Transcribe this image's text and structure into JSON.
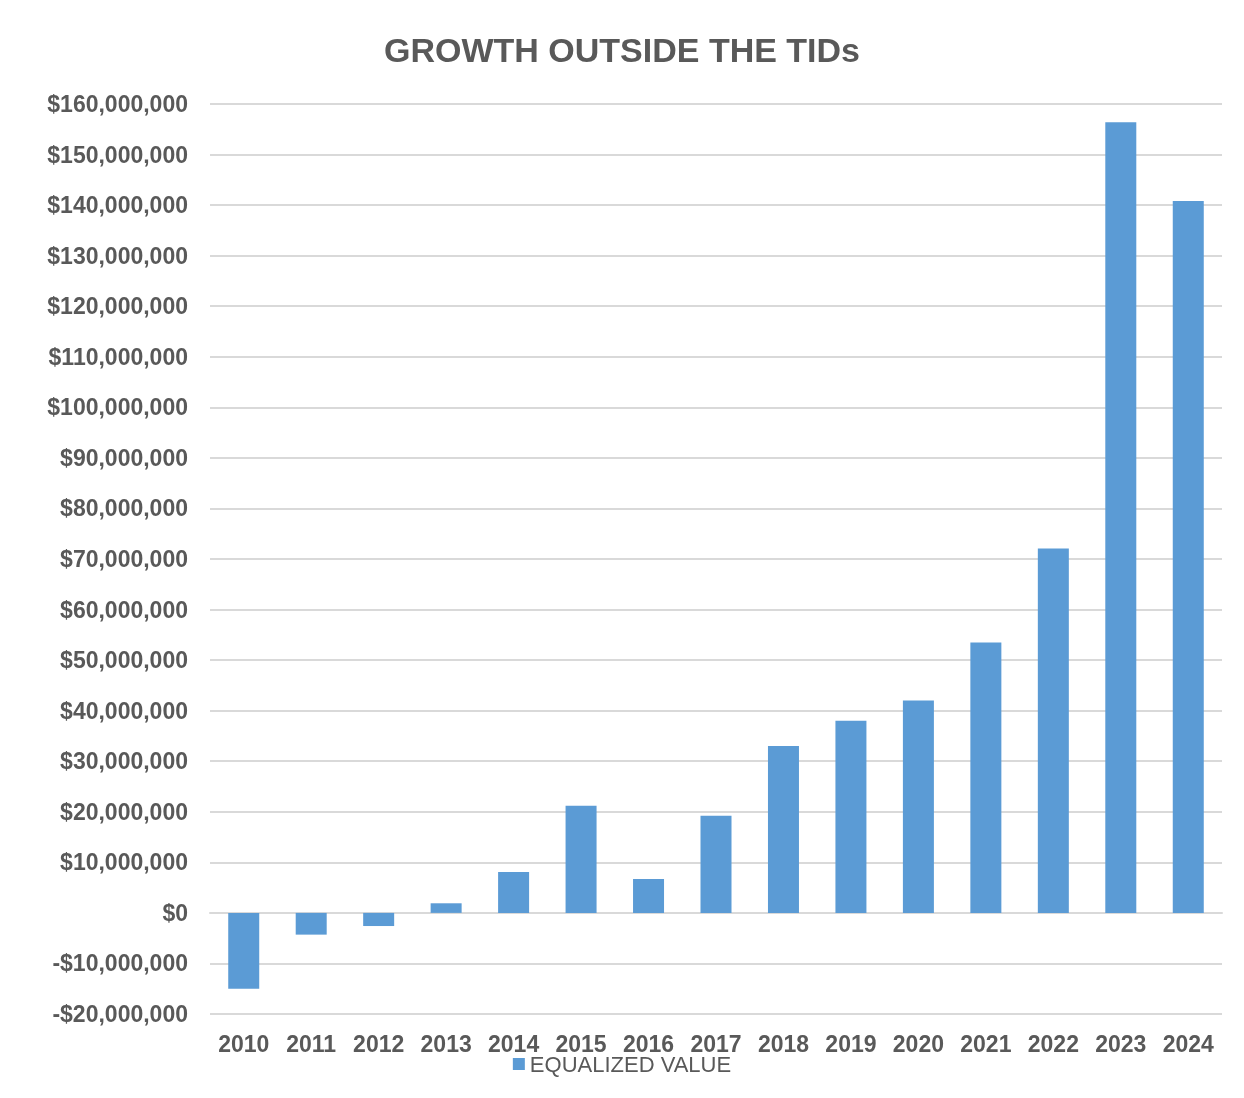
{
  "chart_data": {
    "type": "bar",
    "title": "GROWTH OUTSIDE THE TIDs",
    "categories": [
      "2010",
      "2011",
      "2012",
      "2013",
      "2014",
      "2015",
      "2016",
      "2017",
      "2018",
      "2019",
      "2020",
      "2021",
      "2022",
      "2023",
      "2024"
    ],
    "series": [
      {
        "name": "EQUALIZED VALUE",
        "color": "#5b9bd5",
        "values": [
          -15000000,
          -4300000,
          -2600000,
          1900000,
          8100000,
          21200000,
          6700000,
          19200000,
          33000000,
          38000000,
          42000000,
          53500000,
          72100000,
          156400000,
          140800000
        ]
      }
    ],
    "ylim": [
      -20000000,
      160000000
    ],
    "yticks": [
      {
        "value": -20000000,
        "label": "-$20,000,000"
      },
      {
        "value": -10000000,
        "label": "-$10,000,000"
      },
      {
        "value": 0,
        "label": "$0"
      },
      {
        "value": 10000000,
        "label": "$10,000,000"
      },
      {
        "value": 20000000,
        "label": "$20,000,000"
      },
      {
        "value": 30000000,
        "label": "$30,000,000"
      },
      {
        "value": 40000000,
        "label": "$40,000,000"
      },
      {
        "value": 50000000,
        "label": "$50,000,000"
      },
      {
        "value": 60000000,
        "label": "$60,000,000"
      },
      {
        "value": 70000000,
        "label": "$70,000,000"
      },
      {
        "value": 80000000,
        "label": "$80,000,000"
      },
      {
        "value": 90000000,
        "label": "$90,000,000"
      },
      {
        "value": 100000000,
        "label": "$100,000,000"
      },
      {
        "value": 110000000,
        "label": "$110,000,000"
      },
      {
        "value": 120000000,
        "label": "$120,000,000"
      },
      {
        "value": 130000000,
        "label": "$130,000,000"
      },
      {
        "value": 140000000,
        "label": "$140,000,000"
      },
      {
        "value": 150000000,
        "label": "$150,000,000"
      },
      {
        "value": 160000000,
        "label": "$160,000,000"
      }
    ],
    "grid": "y",
    "legend": "bottom"
  }
}
